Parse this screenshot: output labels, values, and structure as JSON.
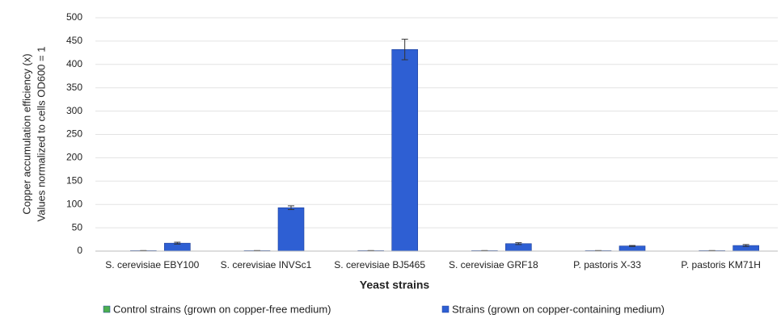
{
  "chart_data": {
    "type": "bar",
    "xlabel": "Yeast strains",
    "ylabel": [
      "Copper accumulation efficiency (x)",
      "Values normalized to cells OD600 = 1"
    ],
    "categories": [
      "S. cerevisiae EBY100",
      "S. cerevisiae INVSc1",
      "S. cerevisiae BJ5465",
      "S. cerevisiae GRF18",
      "P. pastoris X-33",
      "P. pastoris KM71H"
    ],
    "series": [
      {
        "name": "Control strains (grown on copper-free medium)",
        "color": "#4caf50",
        "values": [
          1,
          1,
          1,
          1,
          1,
          1
        ],
        "errors": [
          0.2,
          0.2,
          0.2,
          0.2,
          0.2,
          0.2
        ]
      },
      {
        "name": "Strains (grown on copper-containing medium)",
        "color": "#2e5fd3",
        "values": [
          17,
          93,
          432,
          16,
          11,
          12
        ],
        "errors": [
          2,
          4,
          22,
          2,
          1,
          2
        ]
      }
    ],
    "ylim": [
      0,
      500
    ],
    "yticks": [
      0,
      50,
      100,
      150,
      200,
      250,
      300,
      350,
      400,
      450,
      500
    ],
    "grid": true,
    "legend": "bottom"
  }
}
